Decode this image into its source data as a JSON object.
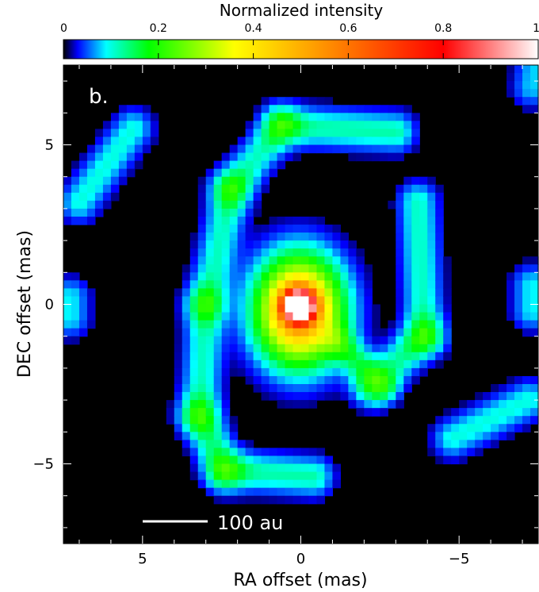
{
  "chart_data": {
    "type": "heatmap",
    "panel_label": "b.",
    "colorbar": {
      "label": "Normalized intensity",
      "ticks": [
        "0",
        "0.2",
        "0.4",
        "0.6",
        "0.8",
        "1"
      ],
      "range": [
        0,
        1
      ],
      "colormap_stops": [
        "#000000",
        "#0000ff",
        "#00ffff",
        "#00ff00",
        "#ffff00",
        "#ff8000",
        "#ff0000",
        "#ffffff"
      ]
    },
    "xlabel": "RA offset (mas)",
    "ylabel": "DEC offset (mas)",
    "x_ticks": [
      "5",
      "0",
      "−5"
    ],
    "y_ticks": [
      "5",
      "0",
      "−5"
    ],
    "xlim": [
      7.5,
      -7.5
    ],
    "ylim": [
      -7.5,
      7.5
    ],
    "scale_bar_label": "100 au",
    "features": [
      {
        "name": "central peak",
        "ra": 0.0,
        "dec": 0.0,
        "peak_intensity": 1.0
      },
      {
        "name": "inner ring",
        "ra": 0.1,
        "dec": -0.2,
        "peak_intensity": 0.33
      },
      {
        "name": "outer arc north",
        "ra": -1.5,
        "dec": 5.0,
        "peak_intensity": 0.12
      },
      {
        "name": "outer arc south",
        "ra": 1.8,
        "dec": -4.9,
        "peak_intensity": 0.12
      },
      {
        "name": "east arc",
        "ra": 3.0,
        "dec": -1.0,
        "peak_intensity": 0.11
      },
      {
        "name": "west arc",
        "ra": -3.4,
        "dec": 0.5,
        "peak_intensity": 0.11
      },
      {
        "name": "northeast blob",
        "ra": 6.0,
        "dec": 4.5,
        "peak_intensity": 0.1
      },
      {
        "name": "southwest blob",
        "ra": -6.3,
        "dec": -4.2,
        "peak_intensity": 0.1
      }
    ]
  }
}
